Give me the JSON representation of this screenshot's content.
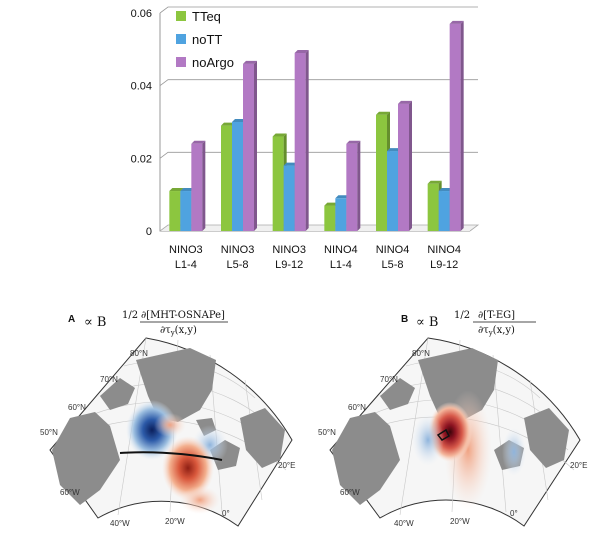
{
  "chart_data": [
    {
      "type": "bar",
      "categories": [
        [
          "NINO3",
          "L1-4"
        ],
        [
          "NINO3",
          "L5-8"
        ],
        [
          "NINO3",
          "L9-12"
        ],
        [
          "NINO4",
          "L1-4"
        ],
        [
          "NINO4",
          "L5-8"
        ],
        [
          "NINO4",
          "L9-12"
        ]
      ],
      "series": [
        {
          "name": "TTeq",
          "color": "#8cc63f",
          "values": [
            0.011,
            0.029,
            0.026,
            0.007,
            0.032,
            0.013
          ]
        },
        {
          "name": "noTT",
          "color": "#4fa3e0",
          "values": [
            0.011,
            0.03,
            0.018,
            0.009,
            0.022,
            0.011
          ]
        },
        {
          "name": "noArgo",
          "color": "#b279c4",
          "values": [
            0.024,
            0.046,
            0.049,
            0.024,
            0.035,
            0.057
          ]
        }
      ],
      "yticks": [
        "0",
        "0.02",
        "0.04",
        "0.06"
      ],
      "ylim": [
        0,
        0.06
      ],
      "legend_position": "top-left",
      "grid": true
    }
  ],
  "maps": {
    "panel_a": {
      "letter": "A",
      "formula_prefix": "∝ B",
      "formula_exp": "1/2",
      "numerator": "∂[MHT-OSNAPe]",
      "denominator": "∂τ",
      "denominator_sub": "y",
      "denominator_args": "(x,y)",
      "labels": {
        "lat80": "80°N",
        "lat70": "70°N",
        "lat60": "60°N",
        "lat50": "50°N",
        "lon60w": "60°W",
        "lon40w": "40°W",
        "lon20w": "20°W",
        "lon0": "0°",
        "lon20e": "20°E"
      }
    },
    "panel_b": {
      "letter": "B",
      "formula_prefix": "∝ B",
      "formula_exp": "1/2",
      "numerator": "∂[T-EG]",
      "denominator": "∂τ",
      "denominator_sub": "y",
      "denominator_args": "(x,y)",
      "labels": {
        "lat80": "80°N",
        "lat70": "70°N",
        "lat60": "60°N",
        "lat50": "50°N",
        "lon60w": "60°W",
        "lon40w": "40°W",
        "lon20w": "20°W",
        "lon0": "0°",
        "lon20e": "20°E"
      }
    }
  }
}
